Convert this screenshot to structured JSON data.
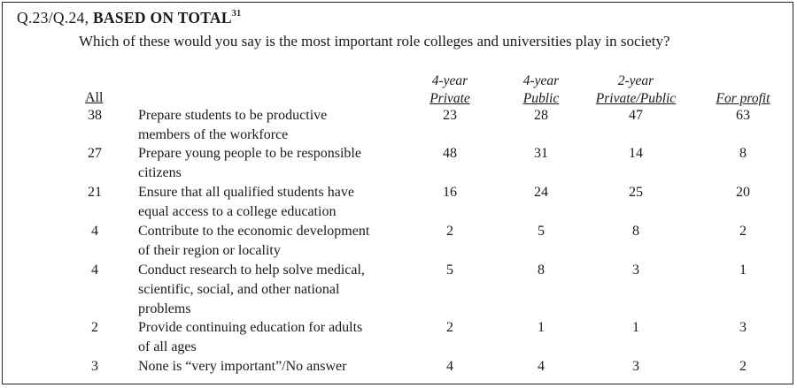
{
  "question": {
    "id": "Q.23/Q.24, ",
    "base": "BASED ON TOTAL",
    "footnote": "31",
    "text": "Which of these would you say is the most important role colleges and universities play in society?"
  },
  "columns": {
    "all": "All",
    "private4": [
      "4-year",
      "Private"
    ],
    "public4": [
      "4-year",
      "Public"
    ],
    "twoyear": [
      "2-year",
      "Private/Public"
    ],
    "forprofit": "For profit"
  },
  "rows": [
    {
      "all": "38",
      "label": [
        "Prepare students to be productive",
        "members of the workforce"
      ],
      "private4": "23",
      "public4": "28",
      "twoyear": "47",
      "forprofit": "63"
    },
    {
      "all": "27",
      "label": [
        "Prepare young people to be responsible",
        "citizens"
      ],
      "private4": "48",
      "public4": "31",
      "twoyear": "14",
      "forprofit": "8"
    },
    {
      "all": "21",
      "label": [
        "Ensure that all qualified students have",
        "equal access to a college education"
      ],
      "private4": "16",
      "public4": "24",
      "twoyear": "25",
      "forprofit": "20"
    },
    {
      "all": "4",
      "label": [
        "Contribute to the economic development",
        "of their region or locality"
      ],
      "private4": "2",
      "public4": "5",
      "twoyear": "8",
      "forprofit": "2"
    },
    {
      "all": "4",
      "label": [
        "Conduct research to help solve medical,",
        "scientific, social, and other national",
        "problems"
      ],
      "private4": "5",
      "public4": "8",
      "twoyear": "3",
      "forprofit": "1"
    },
    {
      "all": "2",
      "label": [
        "Provide continuing education for adults",
        "of all ages"
      ],
      "private4": "2",
      "public4": "1",
      "twoyear": "1",
      "forprofit": "3"
    },
    {
      "all": "3",
      "label": [
        "None is “very important”/No answer"
      ],
      "private4": "4",
      "public4": "4",
      "twoyear": "3",
      "forprofit": "2"
    }
  ]
}
